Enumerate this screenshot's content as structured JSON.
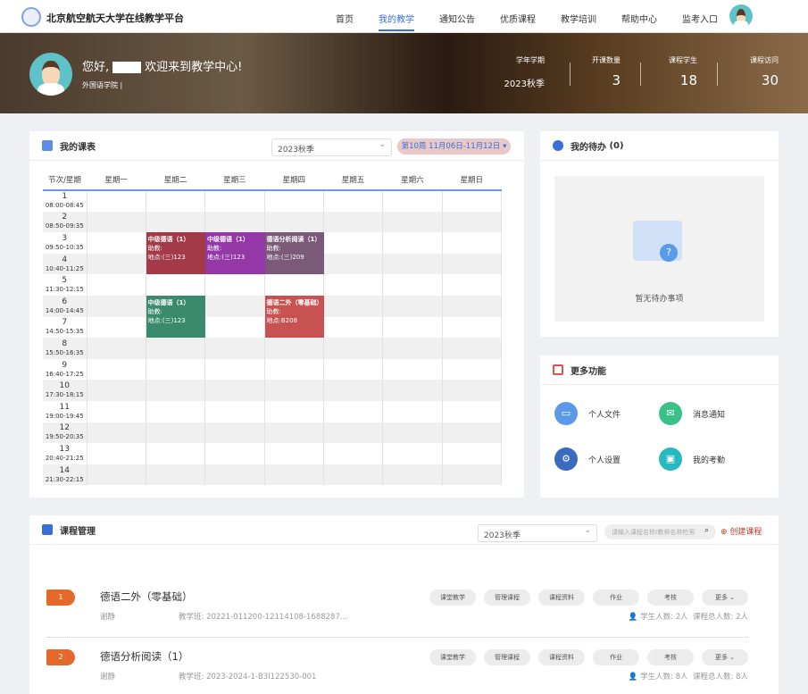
{
  "nav": {
    "brand": "北京航空航天大学在线教学平台",
    "items": [
      "首页",
      "我的教学",
      "通知公告",
      "优质课程",
      "教学培训",
      "帮助中心",
      "监考入口"
    ],
    "active": "我的教学"
  },
  "banner": {
    "greeting": "您好,",
    "welcome": "欢迎来到教学中心!",
    "college": "外国语学院 |",
    "stats": [
      {
        "label": "学年学期",
        "value": "2023秋季"
      },
      {
        "label": "开课数量",
        "value": "3"
      },
      {
        "label": "课程学生",
        "value": "18"
      },
      {
        "label": "课程访问",
        "value": "30"
      }
    ]
  },
  "schedule": {
    "title": "我的课表",
    "term": "2023秋季",
    "week": "第10周 11月06日-11月12日 ▾",
    "headers": [
      "节次/星期",
      "星期一",
      "星期二",
      "星期三",
      "星期四",
      "星期五",
      "星期六",
      "星期日"
    ],
    "periods": [
      {
        "n": "1",
        "t": "08:00-08:45"
      },
      {
        "n": "2",
        "t": "08:50-09:35"
      },
      {
        "n": "3",
        "t": "09:50-10:35"
      },
      {
        "n": "4",
        "t": "10:40-11:25"
      },
      {
        "n": "5",
        "t": "11:30-12:15"
      },
      {
        "n": "6",
        "t": "14:00-14:45"
      },
      {
        "n": "7",
        "t": "14:50-15:35"
      },
      {
        "n": "8",
        "t": "15:50-16:35"
      },
      {
        "n": "9",
        "t": "16:40-17:25"
      },
      {
        "n": "10",
        "t": "17:30-18:15"
      },
      {
        "n": "11",
        "t": "19:00-19:45"
      },
      {
        "n": "12",
        "t": "19:50-20:35"
      },
      {
        "n": "13",
        "t": "20:40-21:25"
      },
      {
        "n": "14",
        "t": "21:30-22:15"
      }
    ],
    "classes": [
      {
        "name": "中级德语（1）",
        "assistant": "助教:",
        "place": "地点:(三)123",
        "color": "#a23a48"
      },
      {
        "name": "中级德语（1）",
        "assistant": "助教:",
        "place": "地点:(三)123",
        "color": "#9438a8"
      },
      {
        "name": "德语分析阅读（1）",
        "assistant": "助教:",
        "place": "地点:(三)209",
        "color": "#7a5a78"
      },
      {
        "name": "中级德语（1）",
        "assistant": "助教:",
        "place": "地点:(三)123",
        "color": "#3a8a6e"
      },
      {
        "name": "德语二外（零基础）",
        "assistant": "助教:",
        "place": "地点:B208",
        "color": "#c85252"
      }
    ]
  },
  "todo": {
    "title": "我的待办",
    "count": "(0)",
    "empty": "暂无待办事项"
  },
  "more": {
    "title": "更多功能",
    "items": [
      {
        "label": "个人文件",
        "color": "#5a9ae8"
      },
      {
        "label": "消息通知",
        "color": "#3cc08a"
      },
      {
        "label": "个人设置",
        "color": "#3a6ac0"
      },
      {
        "label": "我的考勤",
        "color": "#28b8c0"
      }
    ]
  },
  "courses": {
    "title": "课程管理",
    "term": "2023秋季",
    "search_placeholder": "请输入课程名称/教师名称检索",
    "create": "创建课程",
    "actions": [
      "课堂教学",
      "管理课程",
      "课程资料",
      "作业",
      "考核",
      "更多 ⌄"
    ],
    "items": [
      {
        "index": "1",
        "name": "德语二外（零基础）",
        "teacher": "谢静",
        "class_no": "教学班: 20221-011200-12114108-1688287...",
        "students": "学生人数: 2人",
        "total": "课程总人数: 2人"
      },
      {
        "index": "2",
        "name": "德语分析阅读（1）",
        "teacher": "谢静",
        "class_no": "教学班: 2023-2024-1-B3I122530-001",
        "students": "学生人数: 8人",
        "total": "课程总人数: 8人"
      }
    ]
  }
}
